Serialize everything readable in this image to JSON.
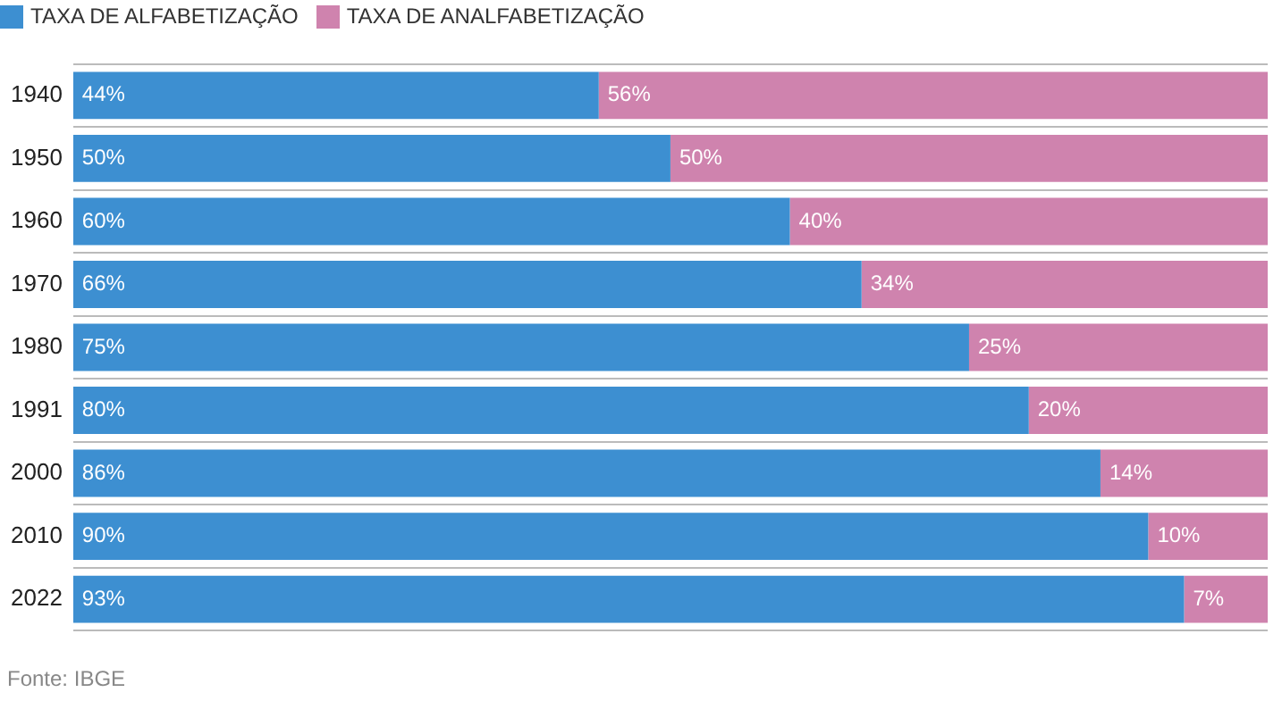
{
  "chart_data": {
    "type": "bar",
    "orientation": "horizontal",
    "stacked": true,
    "categories": [
      "1940",
      "1950",
      "1960",
      "1970",
      "1980",
      "1991",
      "2000",
      "2010",
      "2022"
    ],
    "series": [
      {
        "name": "TAXA DE ALFABETIZAÇÃO",
        "color": "#3d8fd1",
        "values": [
          44,
          50,
          60,
          66,
          75,
          80,
          86,
          90,
          93
        ],
        "value_labels": [
          "44%",
          "50%",
          "60%",
          "66%",
          "75%",
          "80%",
          "86%",
          "90%",
          "93%"
        ]
      },
      {
        "name": "TAXA DE ANALFABETIZAÇÃO",
        "color": "#cf83ae",
        "values": [
          56,
          50,
          40,
          34,
          25,
          20,
          14,
          10,
          7
        ],
        "value_labels": [
          "56%",
          "50%",
          "40%",
          "34%",
          "25%",
          "20%",
          "14%",
          "10%",
          "7%"
        ]
      }
    ],
    "xlim": [
      0,
      100
    ],
    "tick_labels": "y",
    "grid": "y",
    "legend": "top left",
    "annotations": [
      "Fonte: IBGE"
    ]
  }
}
